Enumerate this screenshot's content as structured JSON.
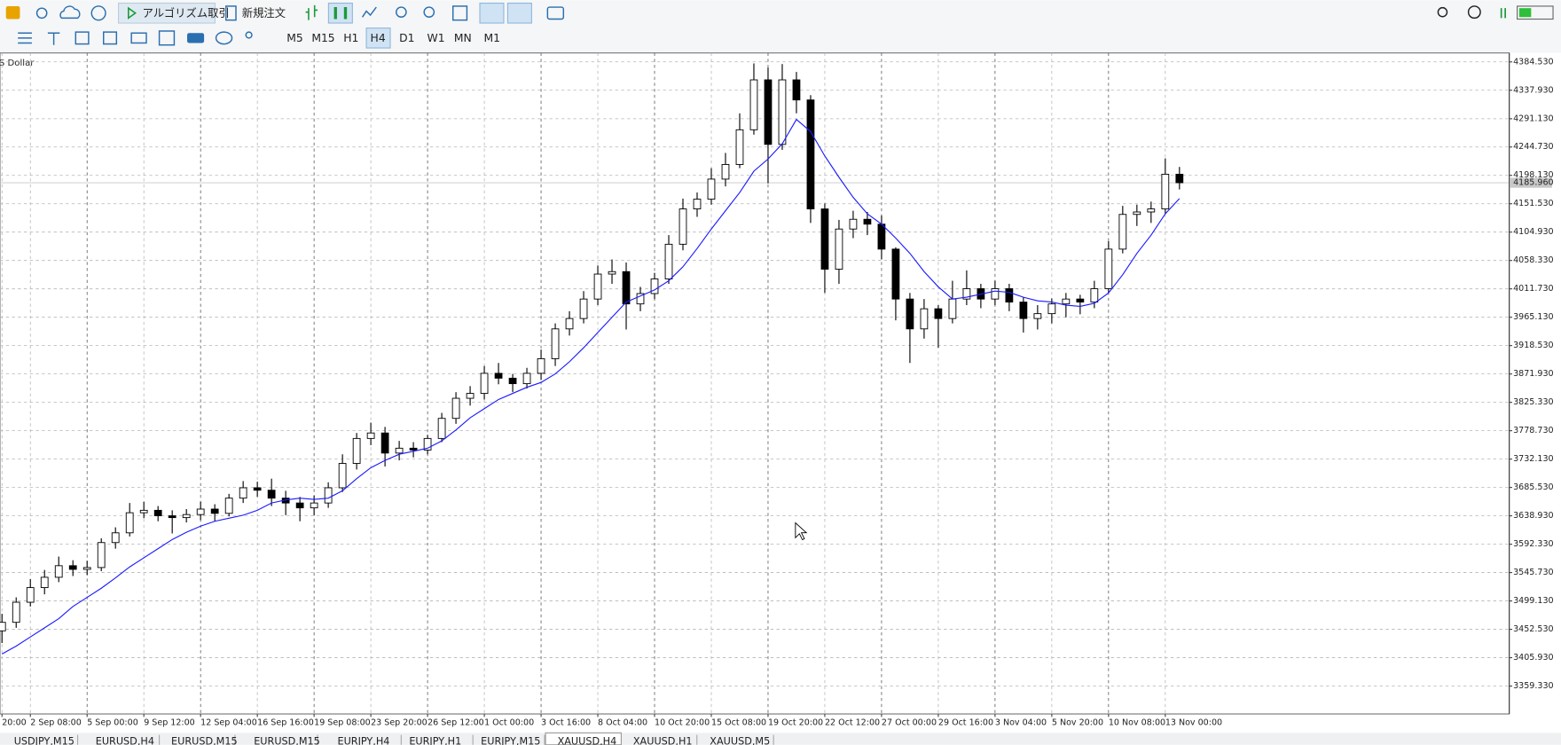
{
  "toolbar": {
    "algo_trading": "アルゴリズム取引",
    "new_order": "新規注文",
    "timeframes": [
      "M5",
      "M15",
      "H1",
      "H4",
      "D1",
      "W1",
      "MN",
      "M1"
    ],
    "active_timeframe": 3
  },
  "chart_data": {
    "type": "candlestick",
    "title": "S Dollar",
    "categories": [
      "20:00",
      null,
      "2 Sep 08:00",
      null,
      null,
      null,
      "5 Sep 00:00",
      null,
      null,
      null,
      "9 Sep 12:00",
      null,
      null,
      null,
      "12 Sep 04:00",
      null,
      null,
      null,
      "16 Sep 16:00",
      null,
      null,
      null,
      "19 Sep 08:00",
      null,
      null,
      null,
      "23 Sep 20:00",
      null,
      null,
      null,
      "26 Sep 12:00",
      null,
      null,
      null,
      "1 Oct 00:00",
      null,
      null,
      null,
      "3 Oct 16:00",
      null,
      null,
      null,
      "8 Oct 04:00",
      null,
      null,
      null,
      "10 Oct 20:00",
      null,
      null,
      null,
      "15 Oct 08:00",
      null,
      null,
      null,
      "19 Oct 20:00",
      null,
      null,
      null,
      "22 Oct 12:00",
      null,
      null,
      null,
      "27 Oct 00:00",
      null,
      null,
      null,
      "29 Oct 16:00",
      null,
      null,
      null,
      "3 Nov 04:00",
      null,
      null,
      null,
      "5 Nov 20:00",
      null,
      null,
      null,
      "10 Nov 08:00",
      null,
      null,
      null,
      "13 Nov 00:00",
      null
    ],
    "open": [
      3450,
      3464,
      3497,
      3521,
      3538,
      3557,
      3551,
      3554,
      3595,
      3611,
      3644,
      3648,
      3639,
      3636,
      3641,
      3650,
      3643,
      3668,
      3685,
      3681,
      3668,
      3660,
      3652,
      3660,
      3685,
      3725,
      3766,
      3775,
      3742,
      3750,
      3747,
      3766,
      3799,
      3832,
      3840,
      3873,
      3865,
      3856,
      3873,
      3897,
      3946,
      3963,
      3995,
      4036,
      4040,
      3987,
      4004,
      4028,
      4085,
      4143,
      4159,
      4192,
      4216,
      4273,
      4355,
      4249,
      4355,
      4322,
      4143,
      4044,
      4110,
      4126,
      4118,
      4077,
      3995,
      3946,
      3979,
      3963,
      3995,
      4012,
      3995,
      4012,
      3990,
      3963,
      3971,
      3987,
      3995,
      3990,
      4012,
      4077,
      4134,
      4138,
      4143,
      4200
    ],
    "high": [
      3478,
      3505,
      3535,
      3550,
      3572,
      3566,
      3565,
      3602,
      3620,
      3660,
      3662,
      3655,
      3648,
      3650,
      3662,
      3658,
      3675,
      3696,
      3695,
      3700,
      3680,
      3670,
      3672,
      3694,
      3740,
      3775,
      3792,
      3785,
      3762,
      3760,
      3772,
      3808,
      3842,
      3852,
      3885,
      3890,
      3872,
      3882,
      3912,
      3955,
      3975,
      4008,
      4050,
      4060,
      4055,
      4015,
      4038,
      4100,
      4160,
      4170,
      4210,
      4235,
      4300,
      4382,
      4375,
      4381,
      4368,
      4330,
      4152,
      4125,
      4140,
      4138,
      4132,
      4080,
      4005,
      3995,
      3985,
      4025,
      4042,
      4020,
      4025,
      4020,
      3998,
      3985,
      3996,
      4005,
      4002,
      4025,
      4090,
      4148,
      4150,
      4155,
      4226,
      4212
    ],
    "low": [
      3430,
      3455,
      3490,
      3510,
      3530,
      3540,
      3542,
      3548,
      3585,
      3605,
      3635,
      3630,
      3610,
      3628,
      3632,
      3630,
      3638,
      3660,
      3670,
      3655,
      3640,
      3630,
      3640,
      3652,
      3678,
      3715,
      3755,
      3720,
      3730,
      3735,
      3740,
      3760,
      3790,
      3820,
      3830,
      3855,
      3842,
      3848,
      3862,
      3885,
      3935,
      3955,
      3985,
      4020,
      3945,
      3975,
      3995,
      4020,
      4075,
      4130,
      4150,
      4180,
      4210,
      4265,
      4185,
      4240,
      4300,
      4120,
      4005,
      4020,
      4095,
      4100,
      4060,
      3960,
      3890,
      3930,
      3915,
      3955,
      3985,
      3980,
      3985,
      3975,
      3940,
      3945,
      3955,
      3965,
      3970,
      3980,
      4005,
      4070,
      4115,
      4120,
      4135,
      4175
    ],
    "close": [
      3464,
      3497,
      3521,
      3538,
      3557,
      3551,
      3554,
      3595,
      3611,
      3644,
      3648,
      3639,
      3636,
      3641,
      3650,
      3643,
      3668,
      3685,
      3681,
      3668,
      3660,
      3652,
      3660,
      3685,
      3725,
      3766,
      3775,
      3742,
      3750,
      3747,
      3766,
      3799,
      3832,
      3840,
      3873,
      3865,
      3856,
      3873,
      3897,
      3946,
      3963,
      3995,
      4036,
      4040,
      3987,
      4004,
      4028,
      4085,
      4143,
      4159,
      4192,
      4216,
      4273,
      4355,
      4249,
      4355,
      4322,
      4143,
      4044,
      4110,
      4126,
      4118,
      4077,
      3995,
      3946,
      3979,
      3963,
      3995,
      4012,
      3995,
      4012,
      3990,
      3963,
      3971,
      3987,
      3995,
      3990,
      4012,
      4077,
      4134,
      4138,
      4143,
      4200,
      4186
    ],
    "ma": {
      "color": "#1a1aff",
      "values": [
        3412,
        3425,
        3440,
        3455,
        3470,
        3490,
        3505,
        3520,
        3537,
        3555,
        3570,
        3585,
        3600,
        3612,
        3622,
        3630,
        3635,
        3640,
        3648,
        3660,
        3665,
        3668,
        3666,
        3668,
        3680,
        3700,
        3718,
        3730,
        3740,
        3745,
        3750,
        3762,
        3780,
        3800,
        3815,
        3830,
        3840,
        3850,
        3858,
        3872,
        3892,
        3915,
        3940,
        3965,
        3990,
        4000,
        4010,
        4025,
        4048,
        4078,
        4110,
        4140,
        4170,
        4205,
        4225,
        4250,
        4290,
        4270,
        4230,
        4195,
        4162,
        4135,
        4118,
        4095,
        4070,
        4040,
        4015,
        3995,
        3998,
        4003,
        4008,
        4006,
        3998,
        3992,
        3990,
        3985,
        3983,
        3988,
        4005,
        4035,
        4070,
        4100,
        4135,
        4160
      ]
    },
    "up_color": "#ffffff",
    "down_color": "#000000",
    "current_price": {
      "value": 4185.96,
      "label": "4185.960"
    },
    "ylim": [
      3313.5,
      4399.2
    ],
    "yticks": [
      {
        "value": 4384.53,
        "label": "4384.530"
      },
      {
        "value": 4337.93,
        "label": "4337.930"
      },
      {
        "value": 4291.13,
        "label": "4291.130"
      },
      {
        "value": 4244.73,
        "label": "4244.730"
      },
      {
        "value": 4198.13,
        "label": "4198.130"
      },
      {
        "value": 4151.53,
        "label": "4151.530"
      },
      {
        "value": 4104.93,
        "label": "4104.930"
      },
      {
        "value": 4058.33,
        "label": "4058.330"
      },
      {
        "value": 4011.73,
        "label": "4011.730"
      },
      {
        "value": 3965.13,
        "label": "3965.130"
      },
      {
        "value": 3918.53,
        "label": "3918.530"
      },
      {
        "value": 3871.93,
        "label": "3871.930"
      },
      {
        "value": 3825.33,
        "label": "3825.330"
      },
      {
        "value": 3778.73,
        "label": "3778.730"
      },
      {
        "value": 3732.13,
        "label": "3732.130"
      },
      {
        "value": 3685.53,
        "label": "3685.530"
      },
      {
        "value": 3638.93,
        "label": "3638.930"
      },
      {
        "value": 3592.33,
        "label": "3592.330"
      },
      {
        "value": 3545.73,
        "label": "3545.730"
      },
      {
        "value": 3499.13,
        "label": "3499.130"
      },
      {
        "value": 3452.53,
        "label": "3452.530"
      },
      {
        "value": 3405.93,
        "label": "3405.930"
      },
      {
        "value": 3359.33,
        "label": "3359.330"
      }
    ],
    "grid": true
  },
  "tabs": [
    "USDJPY,M15",
    "EURUSD,H4",
    "EURUSD,M15",
    "EURUSD,M15",
    "EURJPY,H4",
    "EURJPY,H1",
    "EURJPY,M15",
    "XAUUSD,H4",
    "XAUUSD,H1",
    "XAUUSD,M5"
  ],
  "active_tab": 7
}
